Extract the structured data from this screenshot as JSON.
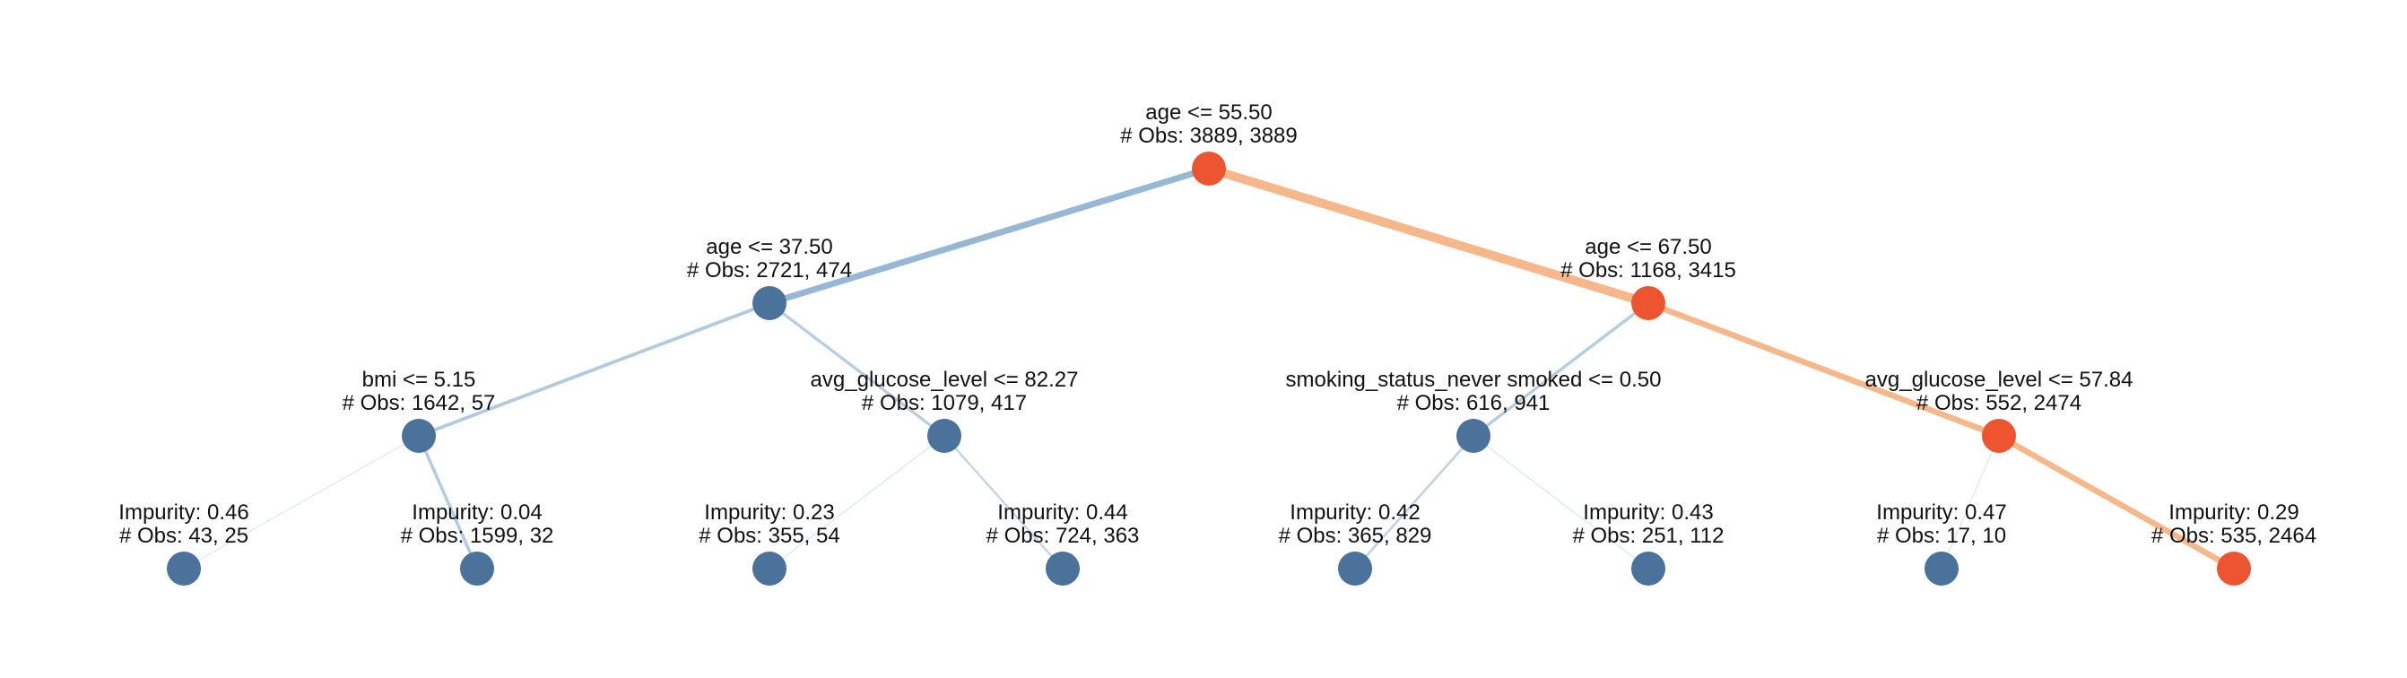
{
  "colors": {
    "background": "#ffffff",
    "node_default": "#4a729b",
    "node_highlight": "#ec5530",
    "edge_default": "#8bb0d0",
    "edge_highlight": "#f5b07e",
    "text": "#111111"
  },
  "tree": {
    "nodes": [
      {
        "id": "root",
        "name": "tree-node-root",
        "lines": [
          "age <= 55.50",
          "# Obs: 3889, 3889"
        ],
        "highlight": true
      },
      {
        "id": "n-l",
        "name": "tree-node-age-37-50",
        "lines": [
          "age <= 37.50",
          "# Obs: 2721, 474"
        ],
        "highlight": false
      },
      {
        "id": "n-r",
        "name": "tree-node-age-67-50",
        "lines": [
          "age <= 67.50",
          "# Obs: 1168, 3415"
        ],
        "highlight": true
      },
      {
        "id": "n-ll",
        "name": "tree-node-bmi-5-15",
        "lines": [
          "bmi <= 5.15",
          "# Obs: 1642, 57"
        ],
        "highlight": false
      },
      {
        "id": "n-lr",
        "name": "tree-node-avg-glucose-82-27",
        "lines": [
          "avg_glucose_level <= 82.27",
          "# Obs: 1079, 417"
        ],
        "highlight": false
      },
      {
        "id": "n-rl",
        "name": "tree-node-smoking-status",
        "lines": [
          "smoking_status_never smoked <= 0.50",
          "# Obs: 616, 941"
        ],
        "highlight": false
      },
      {
        "id": "n-rr",
        "name": "tree-node-avg-glucose-57-84",
        "lines": [
          "avg_glucose_level <= 57.84",
          "# Obs: 552, 2474"
        ],
        "highlight": true
      },
      {
        "id": "leaf-1",
        "name": "tree-leaf-1",
        "lines": [
          "Impurity: 0.46",
          "# Obs: 43, 25"
        ],
        "highlight": false
      },
      {
        "id": "leaf-2",
        "name": "tree-leaf-2",
        "lines": [
          "Impurity: 0.04",
          "# Obs: 1599, 32"
        ],
        "highlight": false
      },
      {
        "id": "leaf-3",
        "name": "tree-leaf-3",
        "lines": [
          "Impurity: 0.23",
          "# Obs: 355, 54"
        ],
        "highlight": false
      },
      {
        "id": "leaf-4",
        "name": "tree-leaf-4",
        "lines": [
          "Impurity: 0.44",
          "# Obs: 724, 363"
        ],
        "highlight": false
      },
      {
        "id": "leaf-5",
        "name": "tree-leaf-5",
        "lines": [
          "Impurity: 0.42",
          "# Obs: 365, 829"
        ],
        "highlight": false
      },
      {
        "id": "leaf-6",
        "name": "tree-leaf-6",
        "lines": [
          "Impurity: 0.43",
          "# Obs: 251, 112"
        ],
        "highlight": false
      },
      {
        "id": "leaf-7",
        "name": "tree-leaf-7",
        "lines": [
          "Impurity: 0.47",
          "# Obs: 17, 10"
        ],
        "highlight": false
      },
      {
        "id": "leaf-8",
        "name": "tree-leaf-8",
        "lines": [
          "Impurity: 0.29",
          "# Obs: 535, 2464"
        ],
        "highlight": true
      }
    ],
    "edges": [
      {
        "from": "root",
        "to": "n-l",
        "obs": 3195,
        "highlight": false
      },
      {
        "from": "root",
        "to": "n-r",
        "obs": 4583,
        "highlight": true
      },
      {
        "from": "n-l",
        "to": "n-ll",
        "obs": 1699,
        "highlight": false
      },
      {
        "from": "n-l",
        "to": "n-lr",
        "obs": 1496,
        "highlight": false
      },
      {
        "from": "n-r",
        "to": "n-rl",
        "obs": 1557,
        "highlight": false
      },
      {
        "from": "n-r",
        "to": "n-rr",
        "obs": 3026,
        "highlight": true
      },
      {
        "from": "n-ll",
        "to": "leaf-1",
        "obs": 68,
        "highlight": false
      },
      {
        "from": "n-ll",
        "to": "leaf-2",
        "obs": 1631,
        "highlight": false
      },
      {
        "from": "n-lr",
        "to": "leaf-3",
        "obs": 409,
        "highlight": false
      },
      {
        "from": "n-lr",
        "to": "leaf-4",
        "obs": 1087,
        "highlight": false
      },
      {
        "from": "n-rl",
        "to": "leaf-5",
        "obs": 1194,
        "highlight": false
      },
      {
        "from": "n-rl",
        "to": "leaf-6",
        "obs": 363,
        "highlight": false
      },
      {
        "from": "n-rr",
        "to": "leaf-7",
        "obs": 27,
        "highlight": false
      },
      {
        "from": "n-rr",
        "to": "leaf-8",
        "obs": 2999,
        "highlight": true
      }
    ]
  }
}
